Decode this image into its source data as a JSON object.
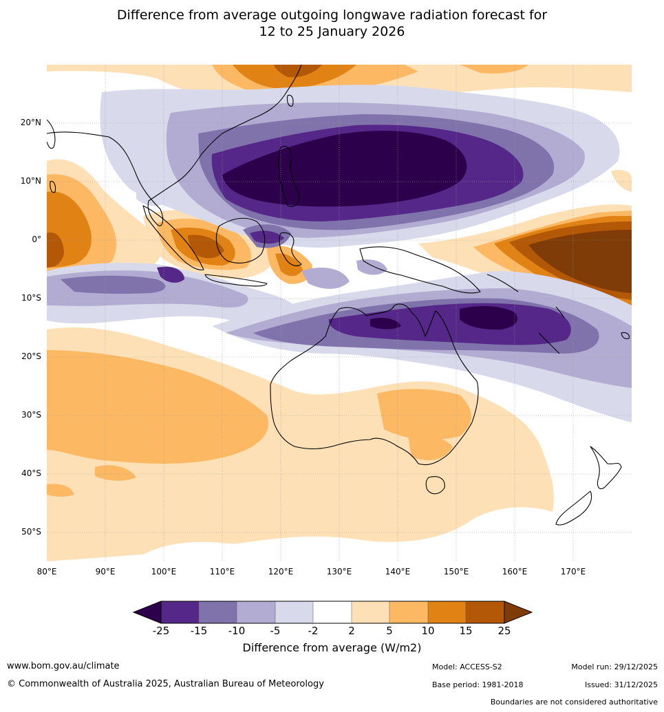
{
  "title_line1": "Difference from average outgoing longwave radiation forecast for",
  "title_line2": "12 to 25 January 2026",
  "map": {
    "lat_labels": [
      "20°N",
      "10°N",
      "0°",
      "10°S",
      "20°S",
      "30°S",
      "40°S",
      "50°S"
    ],
    "lon_labels": [
      "80°E",
      "90°E",
      "100°E",
      "110°E",
      "120°E",
      "130°E",
      "140°E",
      "150°E",
      "160°E",
      "170°E"
    ]
  },
  "colorbar": {
    "ticks": [
      "-25",
      "-15",
      "-10",
      "-5",
      "-2",
      "2",
      "5",
      "10",
      "15",
      "25"
    ],
    "colors": [
      "#2d004b",
      "#542788",
      "#8073ac",
      "#b2abd2",
      "#d8daeb",
      "#ffffff",
      "#fee0b6",
      "#fdb863",
      "#e08214",
      "#b35806",
      "#7f3b08"
    ],
    "title": "Difference from average (W/m2)"
  },
  "footer": {
    "website": "www.bom.gov.au/climate",
    "copyright": "© Commonwealth of Australia 2025, Australian Bureau of Meteorology",
    "model": "Model: ACCESS-S2",
    "base_period": "Base period: 1981-2018",
    "model_run": "Model run: 29/12/2025",
    "issued": "Issued: 31/12/2025",
    "disclaimer": "Boundaries are not considered authoritative"
  }
}
